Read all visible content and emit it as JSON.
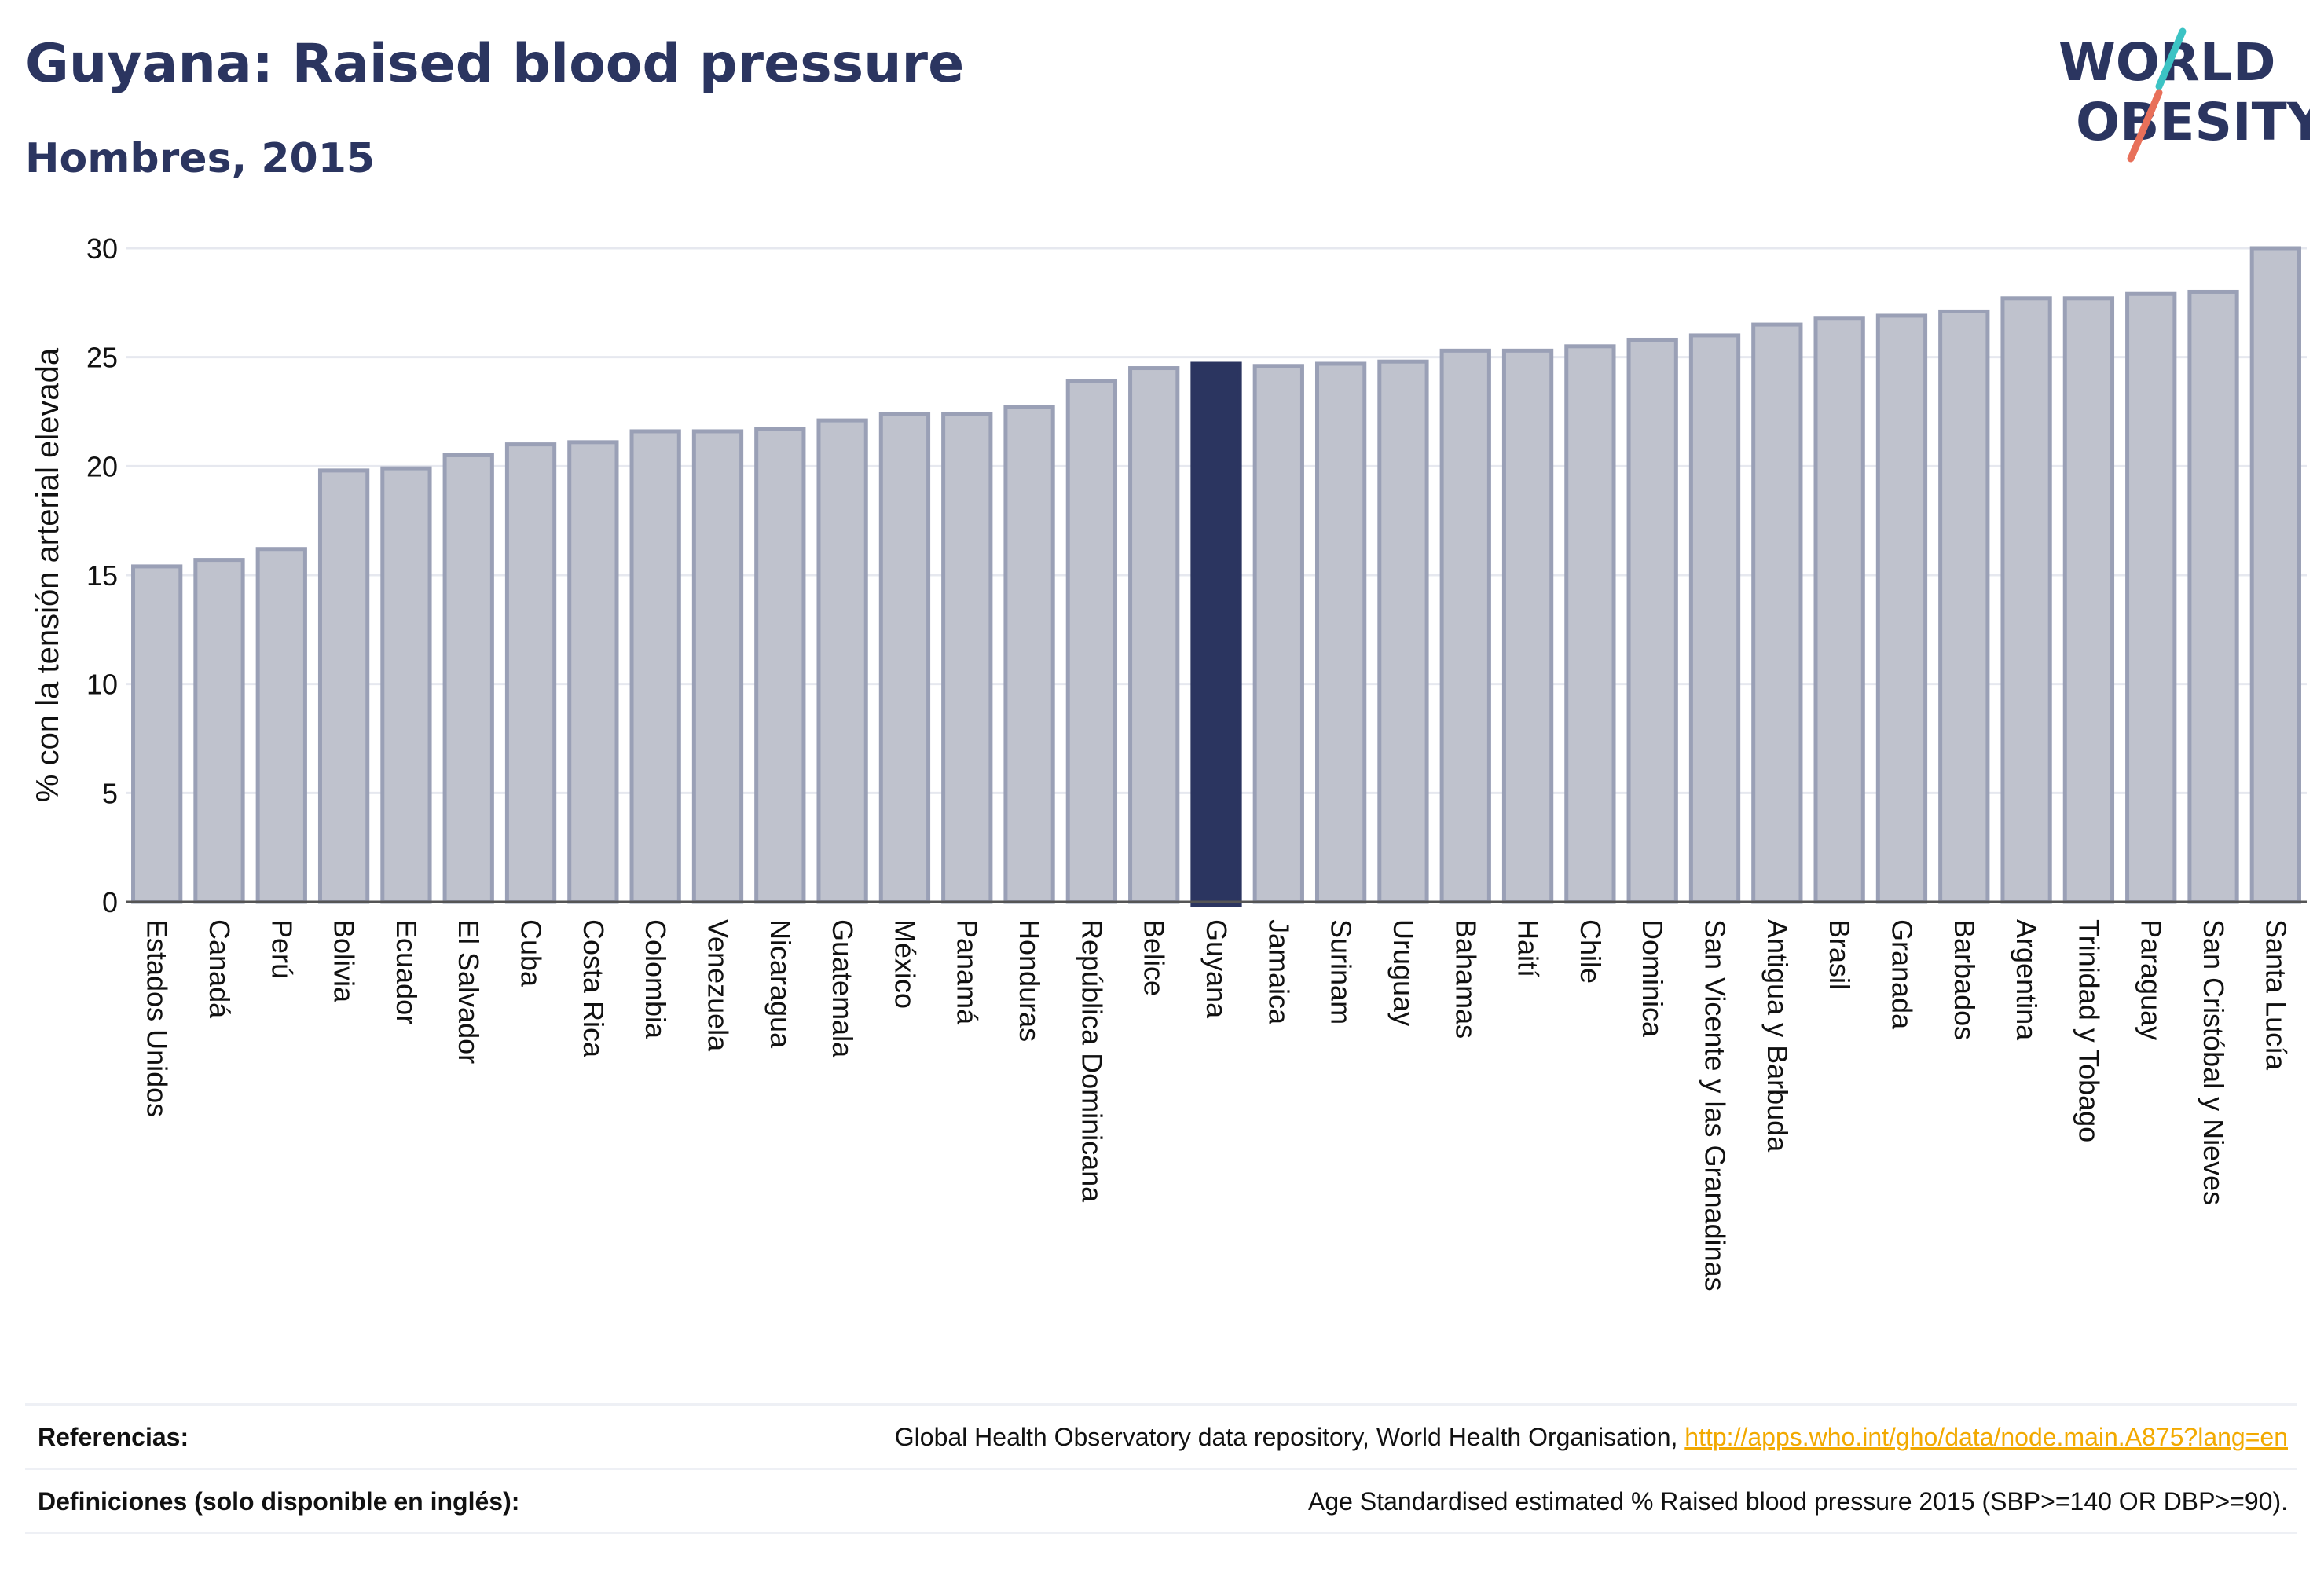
{
  "header": {
    "title": "Guyana: Raised blood pressure",
    "subtitle": "Hombres, 2015"
  },
  "logo": {
    "line1": "WORLD",
    "line2": "OBESITY"
  },
  "colors": {
    "highlight": "#2b3560",
    "bar_fill": "#bfc2cd",
    "bar_stroke": "#9aa0b6",
    "link": "#f2a900",
    "logo_teal": "#3cc3c4",
    "logo_coral": "#e8705a"
  },
  "chart_data": {
    "type": "bar",
    "title": "",
    "xlabel": "",
    "ylabel": "% con la tensión arterial elevada",
    "ylim": [
      0,
      30
    ],
    "yticks": [
      0,
      5,
      10,
      15,
      20,
      25,
      30
    ],
    "grid": true,
    "highlight": "Guyana",
    "categories": [
      "Estados Unidos",
      "Canadá",
      "Perú",
      "Bolivia",
      "Ecuador",
      "El Salvador",
      "Cuba",
      "Costa Rica",
      "Colombia",
      "Venezuela",
      "Nicaragua",
      "Guatemala",
      "México",
      "Panamá",
      "Honduras",
      "República Dominicana",
      "Belice",
      "Guyana",
      "Jamaica",
      "Surinam",
      "Uruguay",
      "Bahamas",
      "Haití",
      "Chile",
      "Dominica",
      "San Vicente y las Granadinas",
      "Antigua y Barbuda",
      "Brasil",
      "Granada",
      "Barbados",
      "Argentina",
      "Trinidad y Tobago",
      "Paraguay",
      "San Cristóbal y Nieves",
      "Santa Lucía"
    ],
    "values": [
      15.4,
      15.7,
      16.2,
      19.8,
      19.9,
      20.5,
      21.0,
      21.1,
      21.6,
      21.6,
      21.7,
      22.1,
      22.4,
      22.4,
      22.7,
      23.9,
      24.5,
      24.7,
      24.6,
      24.7,
      24.8,
      25.3,
      25.3,
      25.5,
      25.8,
      26.0,
      26.5,
      26.8,
      26.9,
      27.1,
      27.7,
      27.7,
      27.9,
      28.0,
      30.0
    ]
  },
  "footer": {
    "references_label": "Referencias:",
    "references_text": "Global Health Observatory data repository, World Health Organisation, ",
    "references_link": "http://apps.who.int/gho/data/node.main.A875?lang=en",
    "definitions_label": "Definiciones (solo disponible en inglés):",
    "definitions_text": "Age Standardised estimated % Raised blood pressure 2015 (SBP>=140 OR DBP>=90)."
  }
}
